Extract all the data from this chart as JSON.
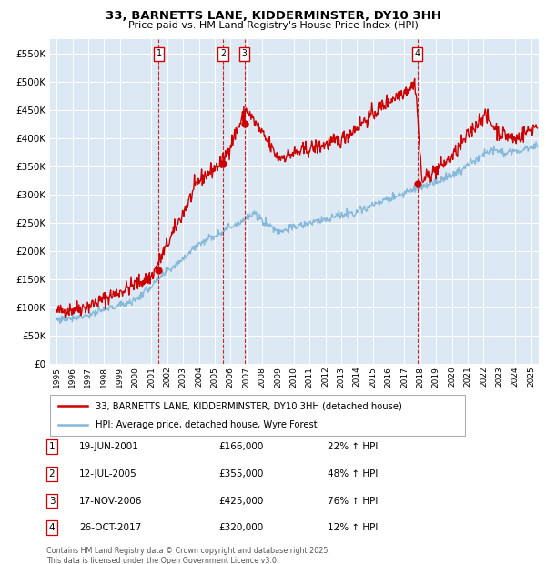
{
  "title": "33, BARNETTS LANE, KIDDERMINSTER, DY10 3HH",
  "subtitle": "Price paid vs. HM Land Registry's House Price Index (HPI)",
  "ytick_vals": [
    0,
    50000,
    100000,
    150000,
    200000,
    250000,
    300000,
    350000,
    400000,
    450000,
    500000,
    550000
  ],
  "ylabel_ticks": [
    "£0",
    "£50K",
    "£100K",
    "£150K",
    "£200K",
    "£250K",
    "£300K",
    "£350K",
    "£400K",
    "£450K",
    "£500K",
    "£550K"
  ],
  "ylim": [
    0,
    575000
  ],
  "xlim_start": 1994.6,
  "xlim_end": 2025.5,
  "plot_bg_color": "#dce9f5",
  "grid_color": "#ffffff",
  "red_line_color": "#cc0000",
  "blue_line_color": "#85b8d8",
  "dashed_line_color": "#cc0000",
  "marker_color": "#cc0000",
  "legend_line1": "33, BARNETTS LANE, KIDDERMINSTER, DY10 3HH (detached house)",
  "legend_line2": "HPI: Average price, detached house, Wyre Forest",
  "sales": [
    {
      "num": 1,
      "date_label": "19-JUN-2001",
      "year": 2001.46,
      "price": 166000,
      "pct": "22% ↑ HPI"
    },
    {
      "num": 2,
      "date_label": "12-JUL-2005",
      "year": 2005.53,
      "price": 355000,
      "pct": "48% ↑ HPI"
    },
    {
      "num": 3,
      "date_label": "17-NOV-2006",
      "year": 2006.88,
      "price": 425000,
      "pct": "76% ↑ HPI"
    },
    {
      "num": 4,
      "date_label": "26-OCT-2017",
      "year": 2017.82,
      "price": 320000,
      "pct": "12% ↑ HPI"
    }
  ],
  "table_rows": [
    {
      "num": 1,
      "date": "19-JUN-2001",
      "price": "£166,000",
      "pct": "22% ↑ HPI"
    },
    {
      "num": 2,
      "date": "12-JUL-2005",
      "price": "£355,000",
      "pct": "48% ↑ HPI"
    },
    {
      "num": 3,
      "date": "17-NOV-2006",
      "price": "£425,000",
      "pct": "76% ↑ HPI"
    },
    {
      "num": 4,
      "date": "26-OCT-2017",
      "price": "£320,000",
      "pct": "12% ↑ HPI"
    }
  ],
  "footnote1": "Contains HM Land Registry data © Crown copyright and database right 2025.",
  "footnote2": "This data is licensed under the Open Government Licence v3.0."
}
